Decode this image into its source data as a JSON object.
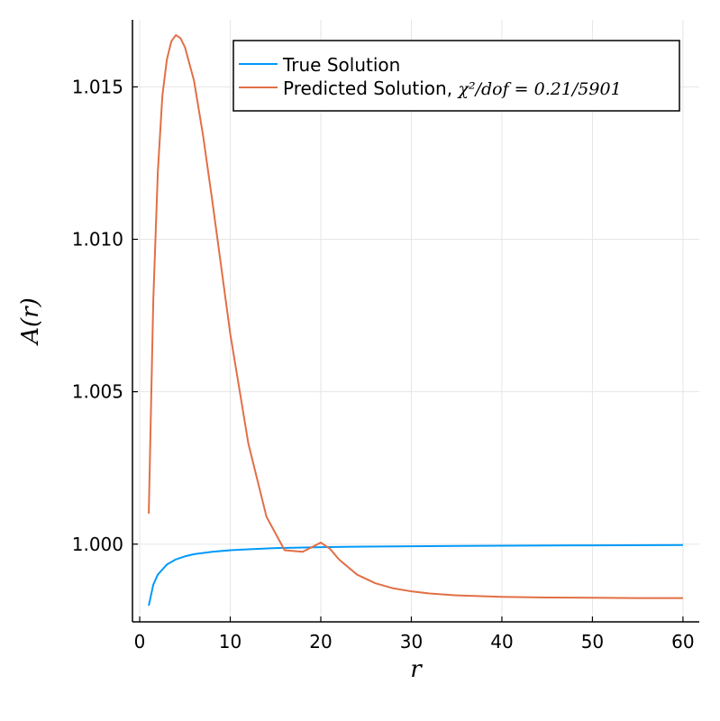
{
  "chart_data": {
    "type": "line",
    "title": "",
    "xlabel": "r",
    "ylabel": "A(r)",
    "xlim": [
      -0.8,
      61.8
    ],
    "ylim": [
      0.99745,
      1.0172
    ],
    "xticks": [
      0,
      10,
      20,
      30,
      40,
      50,
      60
    ],
    "xtick_labels": [
      "0",
      "10",
      "20",
      "30",
      "40",
      "50",
      "60"
    ],
    "yticks": [
      1.0,
      1.005,
      1.01,
      1.015
    ],
    "ytick_labels": [
      "1.000",
      "1.005",
      "1.010",
      "1.015"
    ],
    "grid": true,
    "legend_position": "top-right",
    "series": [
      {
        "name": "True Solution",
        "color": "#009af9",
        "x": [
          1,
          1.5,
          2,
          3,
          4,
          5,
          6,
          8,
          10,
          12,
          15,
          20,
          25,
          30,
          40,
          50,
          60
        ],
        "y": [
          0.99798,
          0.99867,
          0.999,
          0.99933,
          0.9995,
          0.9996,
          0.99967,
          0.99975,
          0.9998,
          0.99983,
          0.99987,
          0.9999,
          0.99992,
          0.99993,
          0.99995,
          0.99996,
          0.99997
        ]
      },
      {
        "name": "Predicted Solution, ",
        "name_math": "χ²/dof = 0.21/5901",
        "color": "#e26f46",
        "x": [
          1,
          1.5,
          2,
          2.5,
          3,
          3.5,
          4,
          4.5,
          5,
          6,
          7,
          8,
          9,
          10,
          12,
          14,
          16,
          18,
          20,
          21,
          22,
          24,
          26,
          28,
          30,
          32,
          35,
          40,
          45,
          50,
          55,
          60
        ],
        "y": [
          1.001,
          1.008,
          1.0122,
          1.0147,
          1.0159,
          1.0165,
          1.0167,
          1.0166,
          1.0163,
          1.0152,
          1.0134,
          1.0113,
          1.0091,
          1.0069,
          1.0033,
          1.0009,
          0.9998,
          0.99975,
          1.00005,
          0.99985,
          0.9995,
          0.999,
          0.99872,
          0.99855,
          0.99845,
          0.99838,
          0.99832,
          0.99827,
          0.99825,
          0.99824,
          0.99823,
          0.99823
        ]
      }
    ]
  }
}
